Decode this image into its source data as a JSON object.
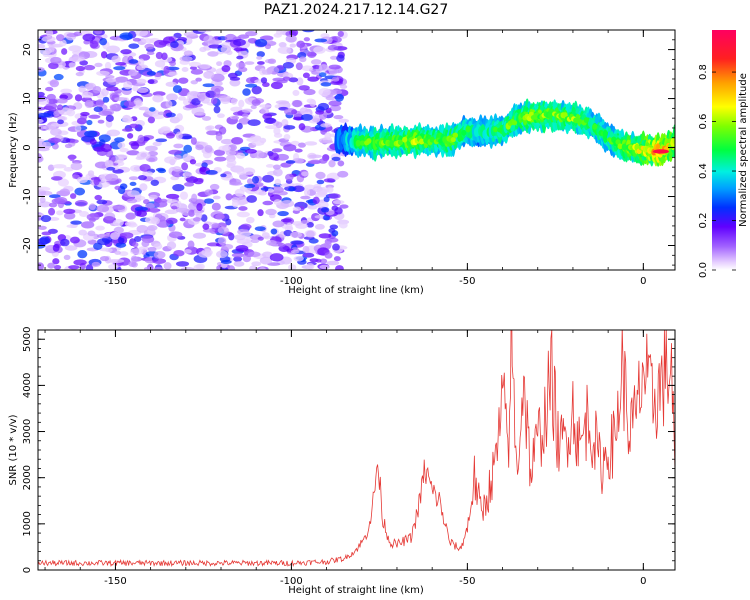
{
  "figure": {
    "title": "PAZ1.2024.217.12.14.G27"
  },
  "chart_data": [
    {
      "type": "heatmap",
      "xlabel": "Height of straight line (km)",
      "ylabel": "Frequency (Hz)",
      "xlim": [
        -172,
        9
      ],
      "ylim": [
        -25,
        24
      ],
      "x_ticks": [
        "-150",
        "-100",
        "-50",
        "0"
      ],
      "y_ticks": [
        "-20",
        "-10",
        "0",
        "10",
        "20"
      ],
      "colorbar": {
        "label": "Normalized spectral amplitude",
        "range": [
          0,
          0.97
        ],
        "ticks": [
          "0.0",
          "0.2",
          "0.4",
          "0.6",
          "0.8"
        ],
        "colormap": "gist_rainbow_r"
      },
      "noise_region_x": [
        -172,
        -85
      ],
      "ridge": {
        "x": [
          -87,
          -80,
          -75,
          -70,
          -65,
          -60,
          -55,
          -50,
          -45,
          -40,
          -35,
          -30,
          -25,
          -20,
          -15,
          -10,
          -5,
          0,
          5,
          9
        ],
        "freq": [
          1.5,
          1.2,
          1.0,
          1.2,
          1.5,
          1.5,
          1.5,
          3.5,
          3.0,
          3.5,
          6.0,
          6.5,
          6.5,
          6.0,
          5.0,
          2.0,
          0.0,
          -0.5,
          -0.8,
          1.0
        ],
        "amplitude": [
          0.3,
          0.55,
          0.6,
          0.6,
          0.65,
          0.6,
          0.6,
          0.5,
          0.45,
          0.55,
          0.6,
          0.65,
          0.6,
          0.65,
          0.55,
          0.5,
          0.65,
          0.75,
          0.95,
          0.7
        ]
      }
    },
    {
      "type": "line",
      "xlabel": "Height of straight line (km)",
      "ylabel": "SNR (10 * v/v)",
      "xlim": [
        -172,
        9
      ],
      "ylim": [
        0,
        5200
      ],
      "x_ticks": [
        "-150",
        "-100",
        "-50",
        "0"
      ],
      "y_ticks": [
        "0",
        "1000",
        "2000",
        "3000",
        "4000",
        "5000"
      ],
      "color": "#e53935",
      "x": [
        -172,
        -160,
        -140,
        -120,
        -100,
        -90,
        -85,
        -82,
        -79,
        -77,
        -75.5,
        -74,
        -72,
        -70,
        -66,
        -64,
        -62,
        -60,
        -58,
        -55,
        -52,
        -50,
        -48,
        -46,
        -44,
        -42,
        -40,
        -38,
        -37.5,
        -36,
        -34,
        -32,
        -30,
        -28,
        -26,
        -24,
        -22,
        -20,
        -18,
        -16,
        -14,
        -12,
        -10,
        -8,
        -6,
        -4,
        -2,
        0,
        2,
        4,
        6,
        8,
        9
      ],
      "snr": [
        150,
        150,
        150,
        150,
        150,
        180,
        250,
        400,
        700,
        1300,
        2350,
        1100,
        600,
        550,
        700,
        1300,
        2200,
        1700,
        1500,
        600,
        450,
        900,
        2000,
        1200,
        1700,
        2300,
        3600,
        2800,
        5200,
        2100,
        4200,
        2100,
        2800,
        3300,
        4200,
        2600,
        2900,
        3500,
        2600,
        3300,
        2900,
        2200,
        2600,
        2800,
        4400,
        3000,
        3300,
        4400,
        3700,
        3800,
        4200,
        4400,
        2100
      ]
    }
  ]
}
